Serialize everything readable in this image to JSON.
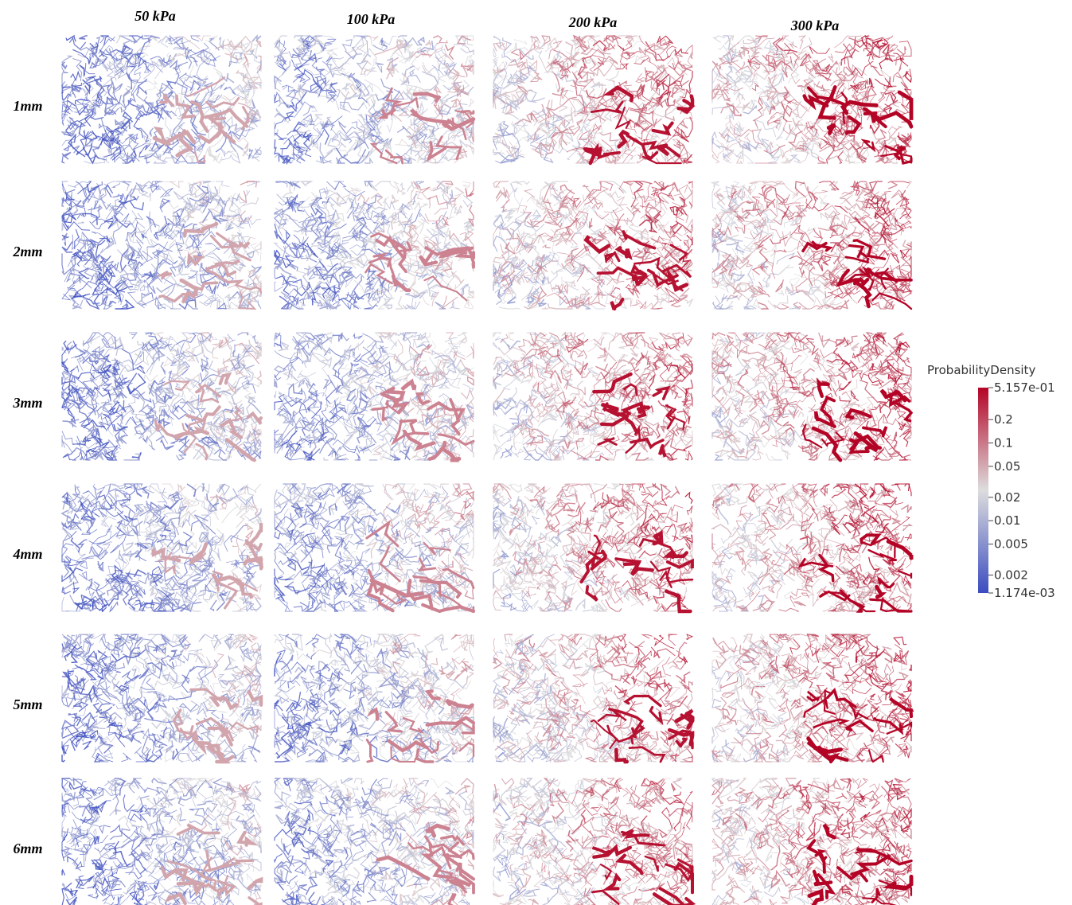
{
  "columns": [
    "50 kPa",
    "100 kPa",
    "200 kPa",
    "300 kPa"
  ],
  "rows": [
    "1mm",
    "2mm",
    "3mm",
    "4mm",
    "5mm",
    "6mm"
  ],
  "colorbar": {
    "title": "ProbabilityDensity",
    "scale": "log",
    "lim": [
      0.001174,
      0.5157
    ],
    "colors": [
      "#3b4cc0",
      "#dddddd",
      "#b40426"
    ],
    "ticks": [
      {
        "value": 0.5157,
        "label": "5.157e-01"
      },
      0.2,
      0.1,
      0.05,
      0.02,
      0.01,
      0.005,
      0.002,
      {
        "value": 0.001174,
        "label": "1.174e-03"
      }
    ]
  }
}
